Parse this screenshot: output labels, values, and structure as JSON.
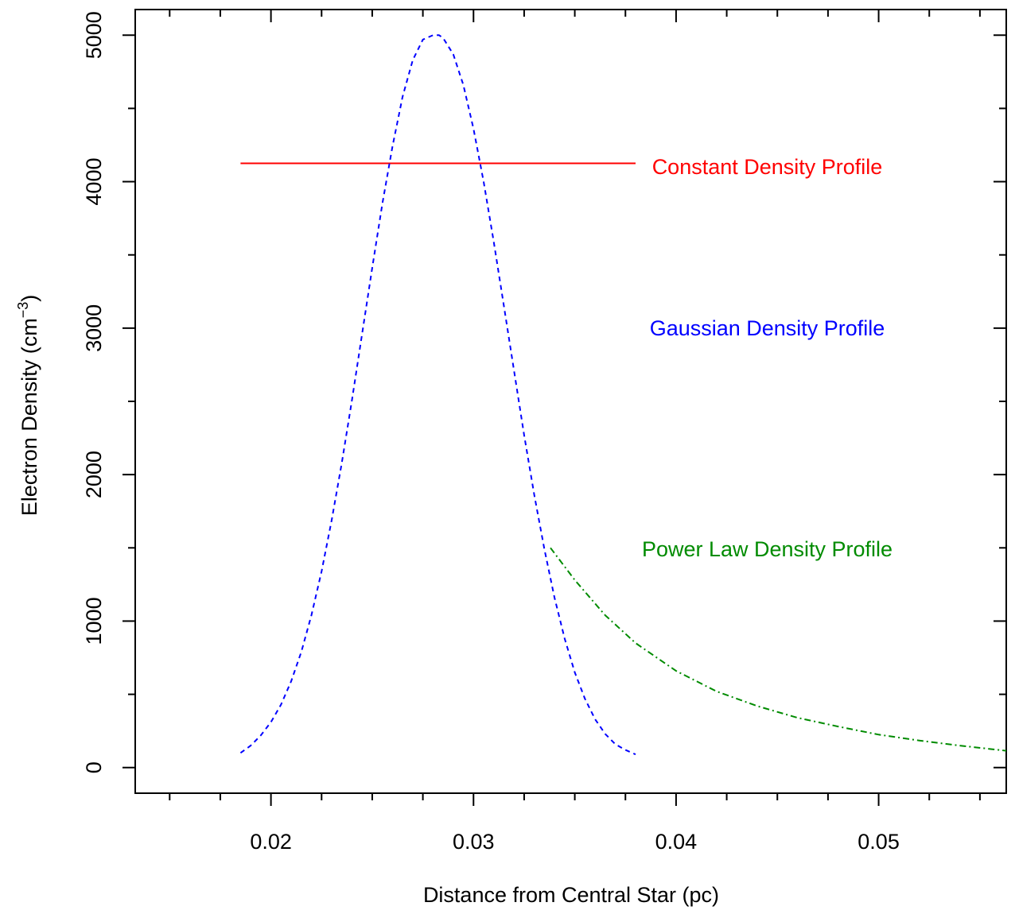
{
  "chart_data": {
    "type": "line",
    "title": "",
    "xlabel": "Distance from Central Star (pc)",
    "ylabel_main": "Electron Density (cm",
    "ylabel_sup": "−3",
    "ylabel_close": ")",
    "xlim": [
      0.0133,
      0.0563
    ],
    "ylim": [
      -175,
      5175
    ],
    "x_ticks": [
      0.02,
      0.03,
      0.04,
      0.05
    ],
    "x_tick_labels": [
      "0.02",
      "0.03",
      "0.04",
      "0.05"
    ],
    "x_minor_step": 0.0025,
    "y_ticks": [
      0,
      1000,
      2000,
      3000,
      4000,
      5000
    ],
    "y_tick_labels": [
      "0",
      "1000",
      "2000",
      "3000",
      "4000",
      "5000"
    ],
    "y_minor_step": 500,
    "grid": false,
    "legend": "none",
    "series": [
      {
        "name": "Constant Density Profile",
        "color": "#ff0000",
        "style": "solid",
        "x": [
          0.0185,
          0.038
        ],
        "y": [
          4125,
          4125
        ]
      },
      {
        "name": "Gaussian Density Profile",
        "color": "#0000ff",
        "style": "dashed",
        "x": [
          0.0185,
          0.019,
          0.0195,
          0.02,
          0.0205,
          0.021,
          0.0215,
          0.022,
          0.0225,
          0.023,
          0.0235,
          0.024,
          0.0245,
          0.025,
          0.0255,
          0.026,
          0.0265,
          0.027,
          0.0275,
          0.028,
          0.0283,
          0.0285,
          0.029,
          0.0295,
          0.03,
          0.0305,
          0.031,
          0.0315,
          0.032,
          0.0325,
          0.033,
          0.0335,
          0.034,
          0.0345,
          0.035,
          0.0355,
          0.036,
          0.0365,
          0.037,
          0.0375,
          0.038
        ],
        "y": [
          100,
          150,
          220,
          310,
          430,
          590,
          790,
          1040,
          1340,
          1690,
          2080,
          2510,
          2960,
          3410,
          3850,
          4240,
          4580,
          4830,
          4970,
          5000,
          5000,
          4980,
          4870,
          4660,
          4360,
          4000,
          3590,
          3150,
          2710,
          2270,
          1860,
          1490,
          1160,
          880,
          650,
          470,
          330,
          230,
          160,
          120,
          90
        ]
      },
      {
        "name": "Power Law Density Profile",
        "color": "#008b00",
        "style": "dashdot",
        "x": [
          0.0338,
          0.035,
          0.0365,
          0.038,
          0.04,
          0.042,
          0.044,
          0.046,
          0.048,
          0.05,
          0.052,
          0.054,
          0.0563
        ],
        "y": [
          1500,
          1280,
          1040,
          850,
          660,
          520,
          420,
          340,
          280,
          225,
          185,
          150,
          115
        ]
      }
    ],
    "annotations": [
      {
        "text": "Constant Density Profile",
        "x": 0.0445,
        "y": 4100,
        "color": "#ff0000"
      },
      {
        "text": "Gaussian Density Profile",
        "x": 0.0445,
        "y": 3000,
        "color": "#0000ff"
      },
      {
        "text": "Power Law Density Profile",
        "x": 0.0445,
        "y": 1490,
        "color": "#008b00"
      }
    ]
  }
}
